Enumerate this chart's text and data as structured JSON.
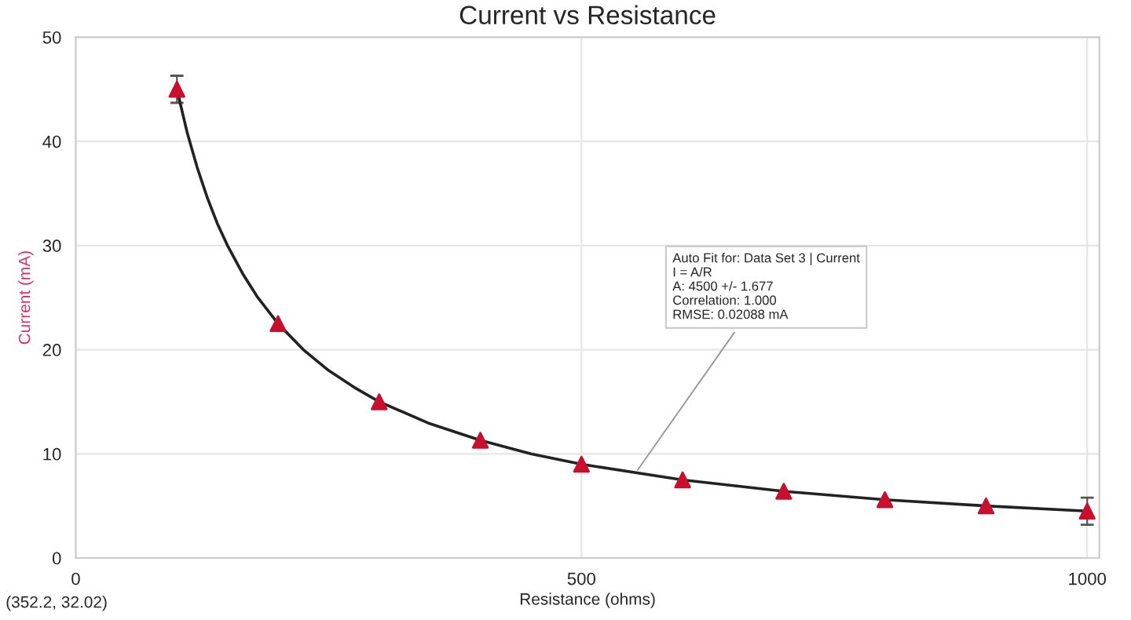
{
  "chart_data": {
    "type": "scatter",
    "title": "Current vs Resistance",
    "xlabel": "Resistance (ohms)",
    "ylabel": "Current (mA)",
    "xlim": [
      0,
      1012
    ],
    "ylim": [
      0,
      50
    ],
    "xticks": [
      0,
      500,
      1000
    ],
    "yticks": [
      0,
      10,
      20,
      30,
      40,
      50
    ],
    "grid": true,
    "legend": false,
    "series": [
      {
        "marker": "triangle",
        "color": "#c8102e",
        "x": [
          100,
          200,
          300,
          400,
          500,
          600,
          700,
          800,
          900,
          1000
        ],
        "values": [
          45,
          22.5,
          15,
          11.3,
          9,
          7.5,
          6.4,
          5.6,
          5,
          4.5
        ],
        "errors": [
          1.3,
          null,
          null,
          null,
          null,
          null,
          null,
          null,
          null,
          1.3
        ]
      },
      {
        "type": "line",
        "marker": "none",
        "line_style": "solid",
        "color": "#222222",
        "x": [
          100,
          110,
          120,
          130,
          140,
          150,
          165,
          180,
          200,
          225,
          250,
          275,
          300,
          350,
          400,
          450,
          500,
          600,
          700,
          800,
          900,
          1000
        ],
        "values": [
          45,
          40.9,
          37.5,
          34.6,
          32.1,
          30,
          27.3,
          25,
          22.5,
          20,
          18,
          16.4,
          15,
          12.9,
          11.3,
          10,
          9,
          7.5,
          6.4,
          5.6,
          5,
          4.5
        ]
      }
    ],
    "annotations": [
      {
        "text": "Auto Fit for: Data Set 3 | Current\nI = A/R\nA: 4500 +/- 1.677\nCorrelation: 1.000\nRMSE: 0.02088 mA",
        "x": 553,
        "y": 8.1
      },
      "(352.2, 32.02)"
    ]
  }
}
